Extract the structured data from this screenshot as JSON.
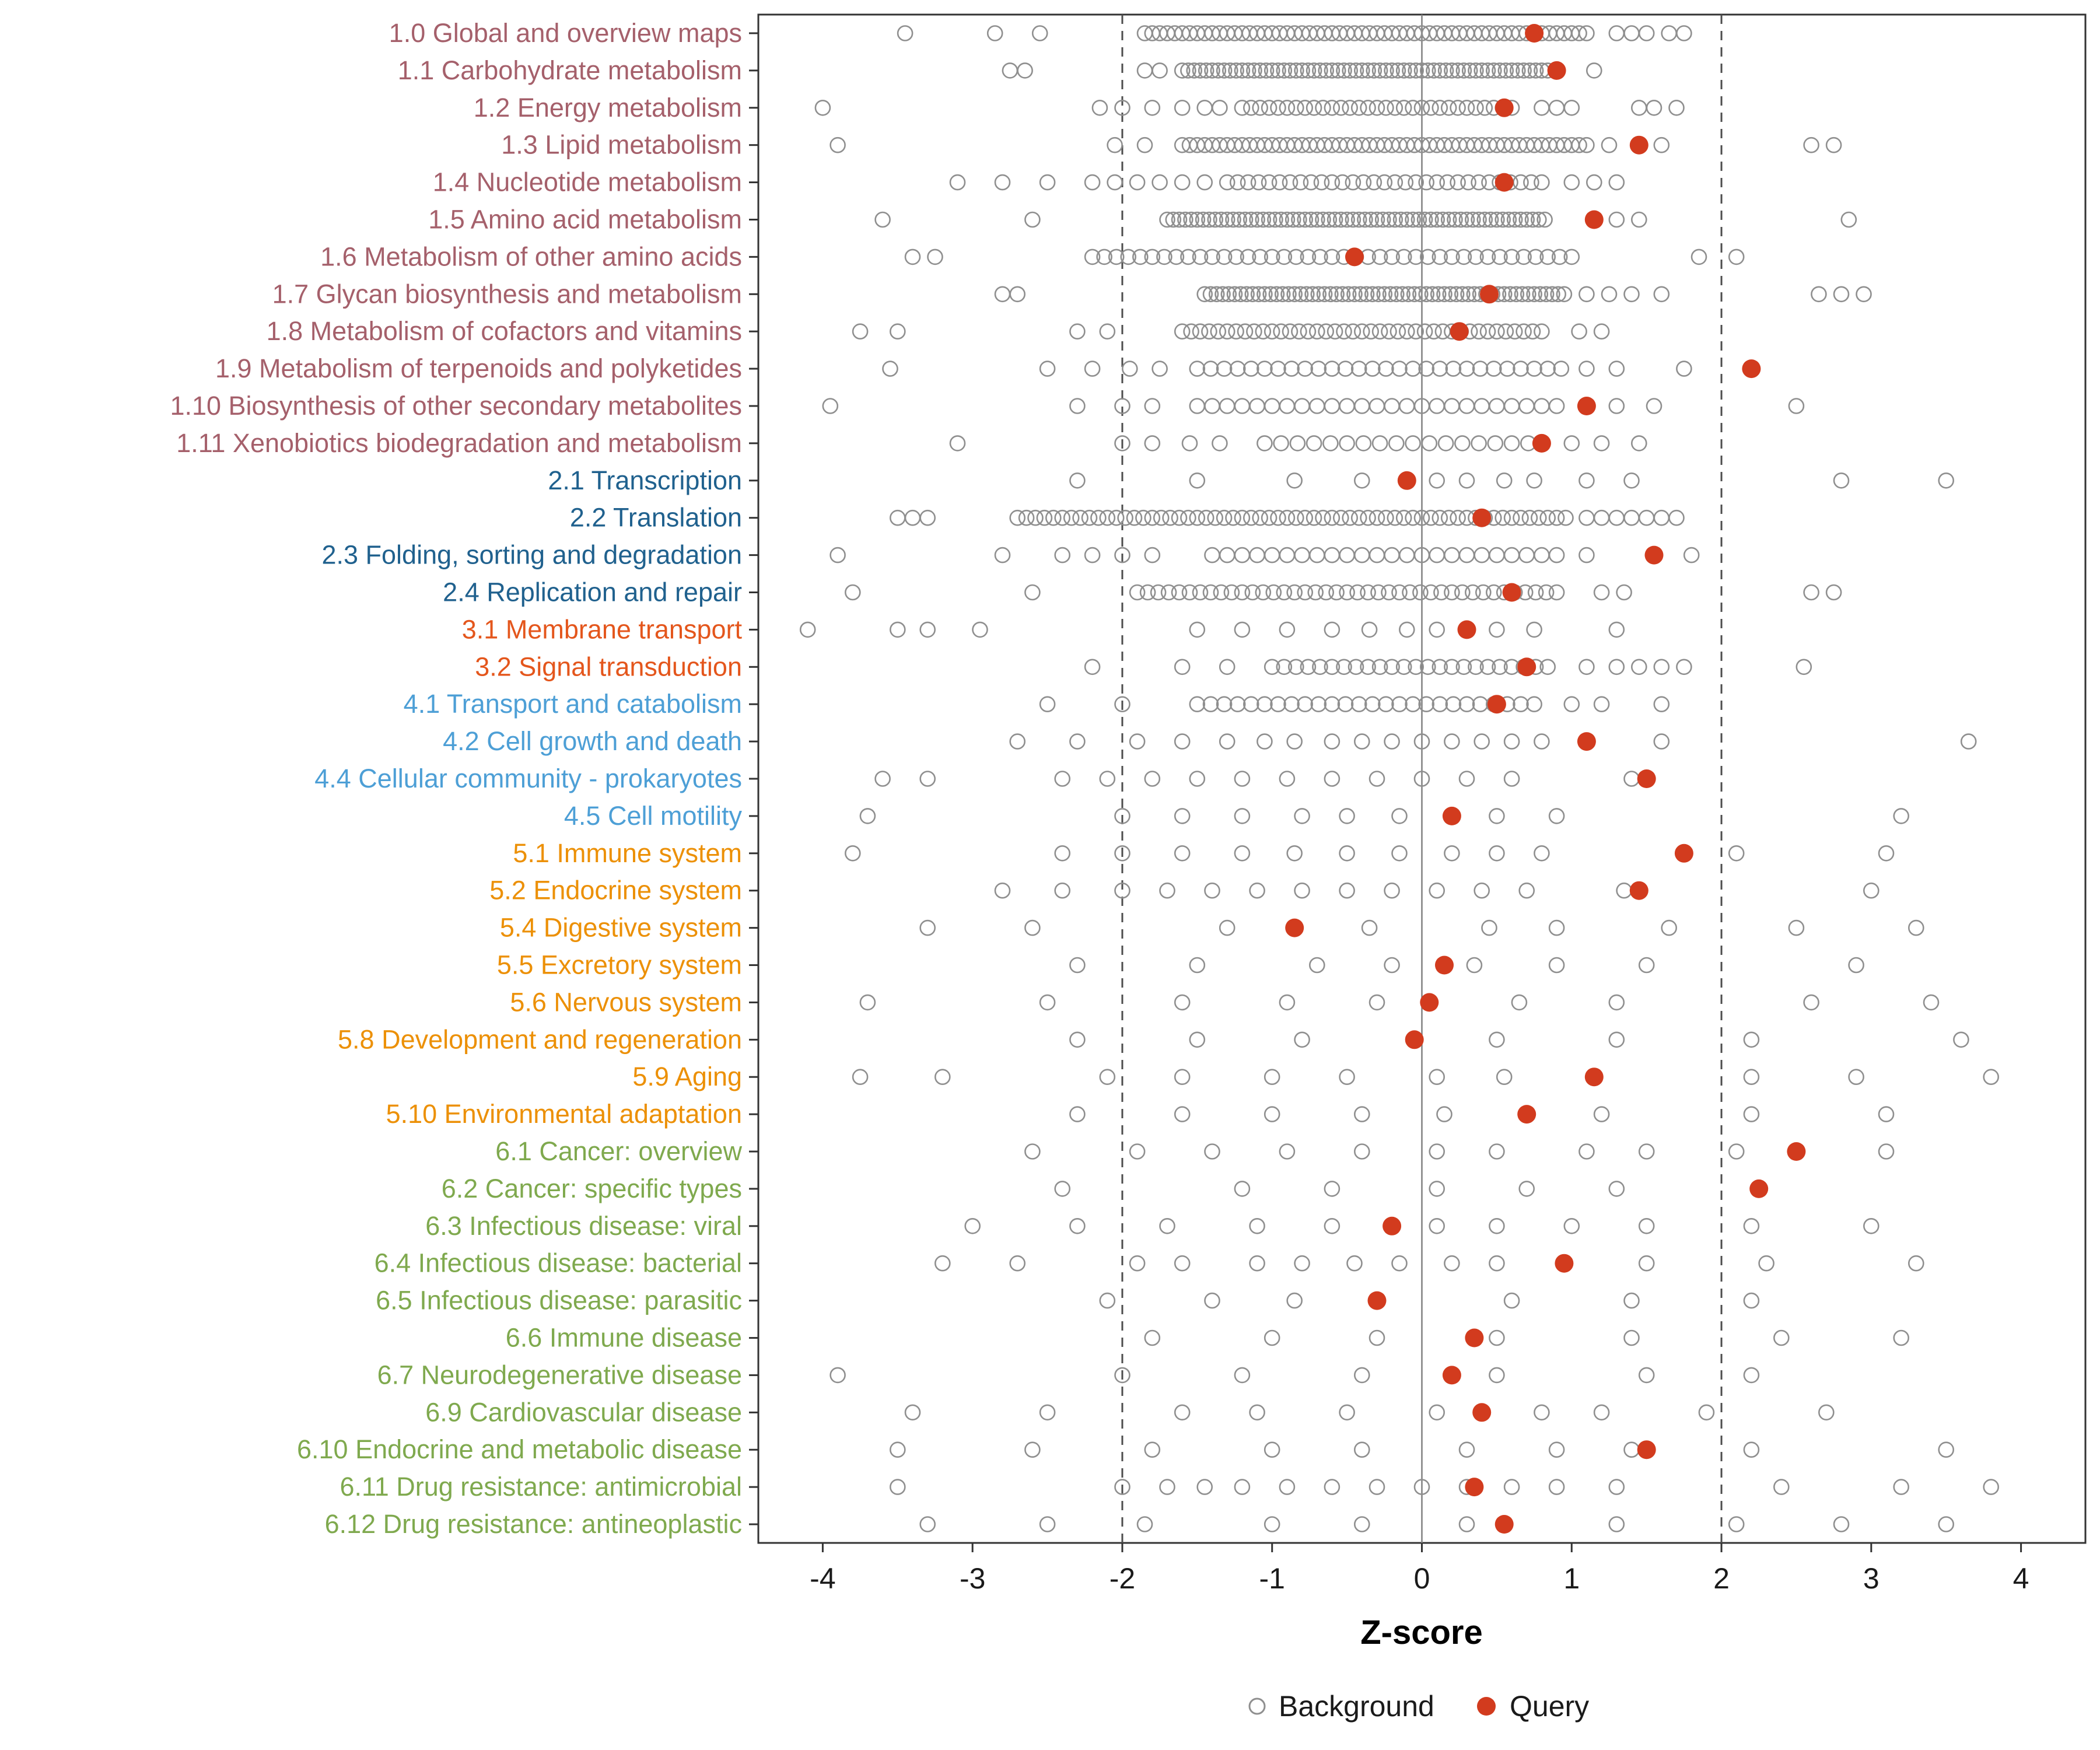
{
  "figure": {
    "legend": {
      "background_label": "Background",
      "query_label": "Query"
    },
    "colors": {
      "query": "#D23B1E",
      "background_stroke": "#8F8F8F",
      "axis_text": "#1A1A1A",
      "panel_border": "#333333",
      "ref_line": "#4D4D4D",
      "zero_line": "#808080",
      "group_colors": {
        "1": "#A5606B",
        "2": "#20618E",
        "3": "#E4561C",
        "4": "#4D9FD6",
        "5": "#EC9006",
        "6": "#7FA94E"
      }
    }
  },
  "chart_data": {
    "type": "scatter",
    "title": "",
    "xlabel": "Z-score",
    "ylabel": "",
    "xlim": [
      -4.43,
      4.43
    ],
    "x_ticks": [
      -4,
      -3,
      -2,
      -1,
      0,
      1,
      2,
      3,
      4
    ],
    "reference_lines": {
      "dashed": [
        -2,
        2
      ],
      "solid": [
        0
      ]
    },
    "legend": [
      "Background",
      "Query"
    ],
    "legend_position": "bottom",
    "grid": false,
    "note": "background_band is [min,max,step] encoding of the dense strip of background points; background_extra are individually visible background points; query is the red dot z-score.",
    "rows": [
      {
        "label": "1.0 Global and overview maps",
        "group": "1",
        "query": 0.75,
        "background_band": [
          -1.85,
          1.1,
          0.05
        ],
        "background_extra": [
          -3.45,
          -2.85,
          -2.55,
          1.3,
          1.4,
          1.5,
          1.65,
          1.75
        ]
      },
      {
        "label": "1.1 Carbohydrate metabolism",
        "group": "1",
        "query": 0.9,
        "background_band": [
          -1.6,
          0.85,
          0.04
        ],
        "background_extra": [
          -2.75,
          -2.65,
          -1.85,
          -1.75,
          1.15
        ]
      },
      {
        "label": "1.2 Energy metabolism",
        "group": "1",
        "query": 0.55,
        "background_band": [
          -1.2,
          0.65,
          0.06
        ],
        "background_extra": [
          -4.0,
          -2.15,
          -2.0,
          -1.8,
          -1.6,
          -1.45,
          -1.35,
          0.8,
          0.9,
          1.0,
          1.45,
          1.55,
          1.7
        ]
      },
      {
        "label": "1.3 Lipid metabolism",
        "group": "1",
        "query": 1.45,
        "background_band": [
          -1.6,
          1.1,
          0.05
        ],
        "background_extra": [
          -3.9,
          -2.05,
          -1.85,
          1.25,
          1.6,
          2.6,
          2.75
        ]
      },
      {
        "label": "1.4 Nucleotide metabolism",
        "group": "1",
        "query": 0.55,
        "background_band": [
          -1.3,
          0.8,
          0.07
        ],
        "background_extra": [
          -3.1,
          -2.8,
          -2.5,
          -2.2,
          -2.05,
          -1.9,
          -1.75,
          -1.6,
          -1.45,
          1.0,
          1.15,
          1.3
        ]
      },
      {
        "label": "1.5 Amino acid metabolism",
        "group": "1",
        "query": 1.15,
        "background_band": [
          -1.7,
          0.85,
          0.04
        ],
        "background_extra": [
          -3.6,
          -2.6,
          1.3,
          1.45,
          2.85
        ]
      },
      {
        "label": "1.6 Metabolism of other amino acids",
        "group": "1",
        "query": -0.45,
        "background_band": [
          -2.2,
          1.05,
          0.08
        ],
        "background_extra": [
          -3.4,
          -3.25,
          1.85,
          2.1
        ]
      },
      {
        "label": "1.7 Glycan biosynthesis and metabolism",
        "group": "1",
        "query": 0.45,
        "background_band": [
          -1.45,
          0.95,
          0.04
        ],
        "background_extra": [
          -2.8,
          -2.7,
          1.1,
          1.25,
          1.4,
          1.6,
          2.65,
          2.8,
          2.95
        ]
      },
      {
        "label": "1.8 Metabolism of cofactors and vitamins",
        "group": "1",
        "query": 0.25,
        "background_band": [
          -1.6,
          0.85,
          0.06
        ],
        "background_extra": [
          -3.75,
          -3.5,
          -2.3,
          -2.1,
          1.05,
          1.2
        ]
      },
      {
        "label": "1.9 Metabolism of terpenoids and polyketides",
        "group": "1",
        "query": 2.2,
        "background_band": [
          -1.5,
          0.95,
          0.09
        ],
        "background_extra": [
          -3.55,
          -2.5,
          -2.2,
          -1.95,
          -1.75,
          1.1,
          1.3,
          1.75
        ]
      },
      {
        "label": "1.10 Biosynthesis of other secondary metabolites",
        "group": "1",
        "query": 1.1,
        "background_band": [
          -1.5,
          0.9,
          0.1
        ],
        "background_extra": [
          -3.95,
          -2.3,
          -2.0,
          -1.8,
          1.3,
          1.55,
          2.5
        ]
      },
      {
        "label": "1.11 Xenobiotics biodegradation and metabolism",
        "group": "1",
        "query": 0.8,
        "background_band": [
          -1.05,
          0.8,
          0.11
        ],
        "background_extra": [
          -3.1,
          -2.0,
          -1.8,
          -1.55,
          -1.35,
          1.0,
          1.2,
          1.45
        ]
      },
      {
        "label": "2.1 Transcription",
        "group": "2",
        "query": -0.1,
        "background_band": null,
        "background_extra": [
          -2.3,
          -1.5,
          -0.85,
          -0.4,
          0.1,
          0.3,
          0.55,
          0.75,
          1.1,
          1.4,
          2.8,
          3.5
        ]
      },
      {
        "label": "2.2 Translation",
        "group": "2",
        "query": 0.4,
        "background_band": [
          -2.7,
          1.0,
          0.06
        ],
        "background_extra": [
          -3.5,
          -3.4,
          -3.3,
          1.1,
          1.2,
          1.3,
          1.4,
          1.5,
          1.6,
          1.7
        ]
      },
      {
        "label": "2.3 Folding, sorting and degradation",
        "group": "2",
        "query": 1.55,
        "background_band": [
          -1.4,
          0.9,
          0.1
        ],
        "background_extra": [
          -3.9,
          -2.8,
          -2.4,
          -2.2,
          -2.0,
          -1.8,
          1.1,
          1.8
        ]
      },
      {
        "label": "2.4 Replication and repair",
        "group": "2",
        "query": 0.6,
        "background_band": [
          -1.9,
          0.9,
          0.07
        ],
        "background_extra": [
          -3.8,
          -2.6,
          1.2,
          1.35,
          2.6,
          2.75
        ]
      },
      {
        "label": "3.1 Membrane transport",
        "group": "3",
        "query": 0.3,
        "background_band": null,
        "background_extra": [
          -4.1,
          -3.5,
          -3.3,
          -2.95,
          -1.5,
          -1.2,
          -0.9,
          -0.6,
          -0.35,
          -0.1,
          0.1,
          0.5,
          0.75,
          1.3
        ]
      },
      {
        "label": "3.2 Signal transduction",
        "group": "3",
        "query": 0.7,
        "background_band": [
          -1.0,
          0.9,
          0.08
        ],
        "background_extra": [
          -2.2,
          -1.6,
          -1.3,
          1.1,
          1.3,
          1.45,
          1.6,
          1.75,
          2.55
        ]
      },
      {
        "label": "4.1 Transport and catabolism",
        "group": "4",
        "query": 0.5,
        "background_band": [
          -1.5,
          0.8,
          0.09
        ],
        "background_extra": [
          -2.5,
          -2.0,
          1.0,
          1.2,
          1.6
        ]
      },
      {
        "label": "4.2 Cell growth and death",
        "group": "4",
        "query": 1.1,
        "background_band": null,
        "background_extra": [
          -2.7,
          -2.3,
          -1.9,
          -1.6,
          -1.3,
          -1.05,
          -0.85,
          -0.6,
          -0.4,
          -0.2,
          0.0,
          0.2,
          0.4,
          0.6,
          0.8,
          1.6,
          3.65
        ]
      },
      {
        "label": "4.4 Cellular community - prokaryotes",
        "group": "4",
        "query": 1.5,
        "background_band": null,
        "background_extra": [
          -3.6,
          -3.3,
          -2.4,
          -2.1,
          -1.8,
          -1.5,
          -1.2,
          -0.9,
          -0.6,
          -0.3,
          0.0,
          0.3,
          0.6,
          1.4
        ]
      },
      {
        "label": "4.5 Cell motility",
        "group": "4",
        "query": 0.2,
        "background_band": null,
        "background_extra": [
          -3.7,
          -2.0,
          -1.6,
          -1.2,
          -0.8,
          -0.5,
          -0.15,
          0.5,
          0.9,
          3.2
        ]
      },
      {
        "label": "5.1 Immune system",
        "group": "5",
        "query": 1.75,
        "background_band": null,
        "background_extra": [
          -3.8,
          -2.4,
          -2.0,
          -1.6,
          -1.2,
          -0.85,
          -0.5,
          -0.15,
          0.2,
          0.5,
          0.8,
          2.1,
          3.1
        ]
      },
      {
        "label": "5.2 Endocrine system",
        "group": "5",
        "query": 1.45,
        "background_band": null,
        "background_extra": [
          -2.8,
          -2.4,
          -2.0,
          -1.7,
          -1.4,
          -1.1,
          -0.8,
          -0.5,
          -0.2,
          0.1,
          0.4,
          0.7,
          1.35,
          3.0
        ]
      },
      {
        "label": "5.4 Digestive system",
        "group": "5",
        "query": -0.85,
        "background_band": null,
        "background_extra": [
          -3.3,
          -2.6,
          -1.3,
          -0.35,
          0.45,
          0.9,
          1.65,
          2.5,
          3.3
        ]
      },
      {
        "label": "5.5 Excretory system",
        "group": "5",
        "query": 0.15,
        "background_band": null,
        "background_extra": [
          -2.3,
          -1.5,
          -0.7,
          -0.2,
          0.35,
          0.9,
          1.5,
          2.9
        ]
      },
      {
        "label": "5.6 Nervous system",
        "group": "5",
        "query": 0.05,
        "background_band": null,
        "background_extra": [
          -3.7,
          -2.5,
          -1.6,
          -0.9,
          -0.3,
          0.65,
          1.3,
          2.6,
          3.4
        ]
      },
      {
        "label": "5.8 Development and regeneration",
        "group": "5",
        "query": -0.05,
        "background_band": null,
        "background_extra": [
          -2.3,
          -1.5,
          -0.8,
          0.5,
          1.3,
          2.2,
          3.6
        ]
      },
      {
        "label": "5.9 Aging",
        "group": "5",
        "query": 1.15,
        "background_band": null,
        "background_extra": [
          -3.75,
          -3.2,
          -2.1,
          -1.6,
          -1.0,
          -0.5,
          0.1,
          0.55,
          2.2,
          2.9,
          3.8
        ]
      },
      {
        "label": "5.10 Environmental adaptation",
        "group": "5",
        "query": 0.7,
        "background_band": null,
        "background_extra": [
          -2.3,
          -1.6,
          -1.0,
          -0.4,
          0.15,
          1.2,
          2.2,
          3.1
        ]
      },
      {
        "label": "6.1 Cancer: overview",
        "group": "6",
        "query": 2.5,
        "background_band": null,
        "background_extra": [
          -2.6,
          -1.9,
          -1.4,
          -0.9,
          -0.4,
          0.1,
          0.5,
          1.1,
          1.5,
          2.1,
          3.1
        ]
      },
      {
        "label": "6.2 Cancer: specific types",
        "group": "6",
        "query": 2.25,
        "background_band": null,
        "background_extra": [
          -2.4,
          -1.2,
          -0.6,
          0.1,
          0.7,
          1.3
        ]
      },
      {
        "label": "6.3 Infectious disease: viral",
        "group": "6",
        "query": -0.2,
        "background_band": null,
        "background_extra": [
          -3.0,
          -2.3,
          -1.7,
          -1.1,
          -0.6,
          0.1,
          0.5,
          1.0,
          1.5,
          2.2,
          3.0
        ]
      },
      {
        "label": "6.4 Infectious disease: bacterial",
        "group": "6",
        "query": 0.95,
        "background_band": null,
        "background_extra": [
          -3.2,
          -2.7,
          -1.9,
          -1.6,
          -1.1,
          -0.8,
          -0.45,
          -0.15,
          0.2,
          0.5,
          1.5,
          2.3,
          3.3
        ]
      },
      {
        "label": "6.5 Infectious disease: parasitic",
        "group": "6",
        "query": -0.3,
        "background_band": null,
        "background_extra": [
          -2.1,
          -1.4,
          -0.85,
          0.6,
          1.4,
          2.2
        ]
      },
      {
        "label": "6.6 Immune disease",
        "group": "6",
        "query": 0.35,
        "background_band": null,
        "background_extra": [
          -1.8,
          -1.0,
          -0.3,
          0.5,
          1.4,
          2.4,
          3.2
        ]
      },
      {
        "label": "6.7 Neurodegenerative disease",
        "group": "6",
        "query": 0.2,
        "background_band": null,
        "background_extra": [
          -3.9,
          -2.0,
          -1.2,
          -0.4,
          0.5,
          1.5,
          2.2
        ]
      },
      {
        "label": "6.9 Cardiovascular disease",
        "group": "6",
        "query": 0.4,
        "background_band": null,
        "background_extra": [
          -3.4,
          -2.5,
          -1.6,
          -1.1,
          -0.5,
          0.1,
          0.8,
          1.2,
          1.9,
          2.7
        ]
      },
      {
        "label": "6.10 Endocrine and metabolic disease",
        "group": "6",
        "query": 1.5,
        "background_band": null,
        "background_extra": [
          -3.5,
          -2.6,
          -1.8,
          -1.0,
          -0.4,
          0.3,
          0.9,
          1.4,
          2.2,
          3.5
        ]
      },
      {
        "label": "6.11 Drug resistance: antimicrobial",
        "group": "6",
        "query": 0.35,
        "background_band": null,
        "background_extra": [
          -3.5,
          -2.0,
          -1.7,
          -1.45,
          -1.2,
          -0.9,
          -0.6,
          -0.3,
          0.0,
          0.3,
          0.6,
          0.9,
          1.3,
          2.4,
          3.2,
          3.8
        ]
      },
      {
        "label": "6.12 Drug resistance: antineoplastic",
        "group": "6",
        "query": 0.55,
        "background_band": null,
        "background_extra": [
          -3.3,
          -2.5,
          -1.85,
          -1.0,
          -0.4,
          0.3,
          1.3,
          2.1,
          2.8,
          3.5
        ]
      }
    ]
  }
}
